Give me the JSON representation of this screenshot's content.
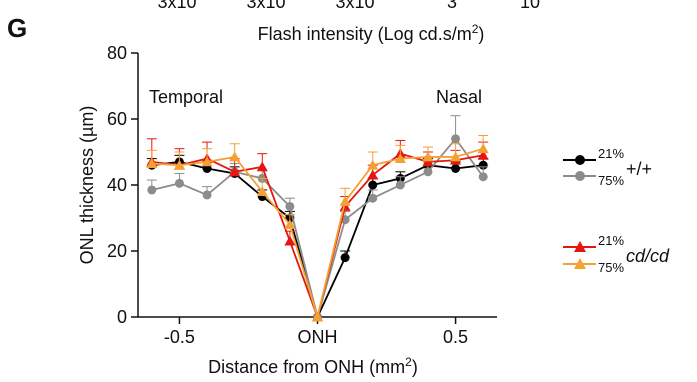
{
  "prev_panel_fragment": {
    "ticks": [
      "3x10",
      "3x10",
      "3x10",
      "3",
      "10"
    ]
  },
  "prev_panel_xlabel": {
    "main": "Flash intensity (Log cd.s/m",
    "sup": "2",
    "end": ")"
  },
  "panel_letter": "G",
  "chart_data": {
    "type": "line",
    "title": "",
    "ylabel": "ONL thickness (µm)",
    "xlabel": {
      "main": "Distance from ONH (mm",
      "sup": "2",
      "end": ")"
    },
    "xlim": [
      -0.65,
      0.65
    ],
    "ylim": [
      0,
      80
    ],
    "yticks": [
      0,
      20,
      40,
      60,
      80
    ],
    "xticks": [
      {
        "value": -0.5,
        "label": "-0.5"
      },
      {
        "value": 0,
        "label": "ONH"
      },
      {
        "value": 0.5,
        "label": "0.5"
      }
    ],
    "annotations": {
      "left": "Temporal",
      "right": "Nasal"
    },
    "x": [
      -0.6,
      -0.5,
      -0.4,
      -0.3,
      -0.2,
      -0.1,
      0,
      0.1,
      0.2,
      0.3,
      0.4,
      0.5,
      0.6
    ],
    "series": [
      {
        "name": "21%",
        "genotype": "+/+",
        "marker": "circle",
        "color": "#000000",
        "values": [
          46,
          47,
          45,
          43.5,
          36.5,
          30,
          0,
          18,
          40,
          42,
          46,
          45,
          46
        ],
        "errors": [
          2,
          2,
          2,
          2,
          2,
          2,
          0,
          2,
          2,
          2,
          2,
          2,
          2
        ]
      },
      {
        "name": "75%",
        "genotype": "+/+",
        "marker": "circle",
        "color": "#8c8c8c",
        "values": [
          38.5,
          40.5,
          37,
          44,
          42,
          33.5,
          0,
          29.5,
          36,
          40,
          44,
          54,
          42.5
        ],
        "errors": [
          3,
          3,
          2.5,
          2.5,
          2.5,
          2.5,
          0,
          2.5,
          2.5,
          2.5,
          3,
          7,
          3
        ]
      },
      {
        "name": "21%",
        "genotype": "cd/cd",
        "marker": "triangle",
        "color": "#e8150f",
        "values": [
          47,
          46,
          48,
          44,
          45.5,
          23,
          0,
          33.5,
          43,
          49.5,
          47,
          47.5,
          49
        ],
        "errors": [
          7,
          5,
          5,
          4,
          4,
          3,
          0,
          3,
          3,
          4,
          3,
          3,
          4
        ]
      },
      {
        "name": "75%",
        "genotype": "cd/cd",
        "marker": "triangle",
        "color": "#f5a033",
        "values": [
          46.5,
          46,
          47,
          48.5,
          38,
          28,
          0,
          35,
          46,
          48,
          48.5,
          48.5,
          51
        ],
        "errors": [
          4,
          4,
          4,
          4,
          4,
          3,
          0,
          4,
          4,
          4,
          3,
          4,
          4
        ]
      }
    ],
    "legend": {
      "groups": [
        {
          "label": "+/+",
          "italic": false,
          "entries": [
            "21%",
            "75%"
          ]
        },
        {
          "label": "cd/cd",
          "italic": true,
          "entries": [
            "21%",
            "75%"
          ]
        }
      ],
      "position": "right"
    },
    "grid": false
  }
}
